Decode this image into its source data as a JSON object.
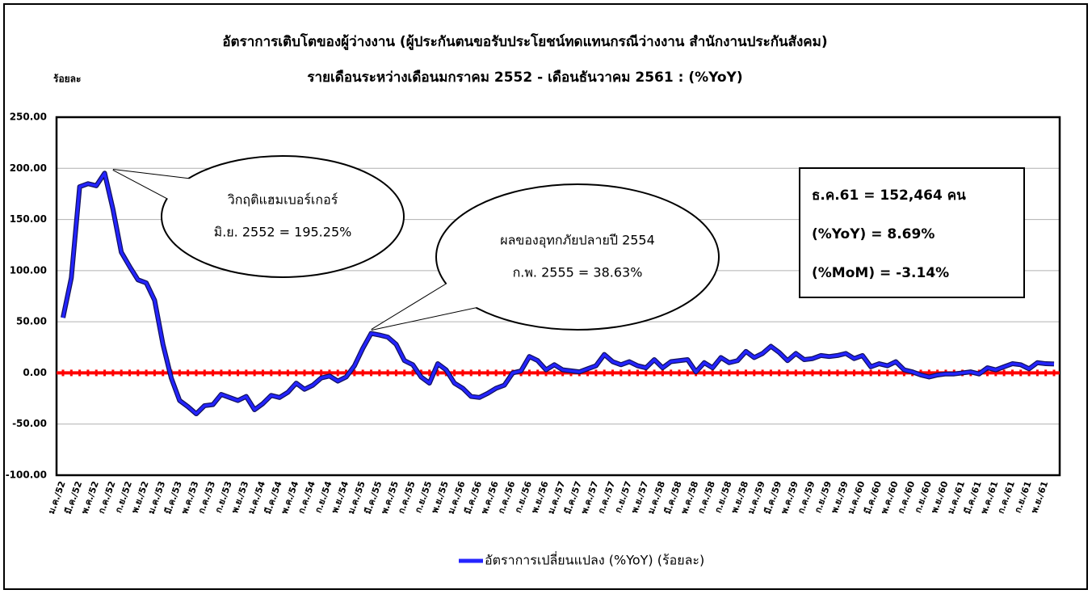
{
  "chart_data": {
    "type": "line",
    "title": "อัตราการเติบโตของผู้ว่างงาน (ผู้ประกันตนขอรับประโยชน์ทดแทนกรณีว่างงาน สำนักงานประกันสังคม)",
    "subtitle": "รายเดือนระหว่างเดือนมกราคม 2552 - เดือนธันวาคม 2561 : (%YoY)",
    "y_label": "ร้อยละ",
    "categories": [
      "ม.ค./52",
      null,
      "มี.ค./52",
      null,
      "พ.ค./52",
      null,
      "ก.ค./52",
      null,
      "ก.ย./52",
      null,
      "พ.ย./52",
      null,
      "ม.ค./53",
      null,
      "มี.ค./53",
      null,
      "พ.ค./53",
      null,
      "ก.ค./53",
      null,
      "ก.ย./53",
      null,
      "พ.ย./53",
      null,
      "ม.ค./54",
      null,
      "มี.ค./54",
      null,
      "พ.ค./54",
      null,
      "ก.ค./54",
      null,
      "ก.ย./54",
      null,
      "พ.ย./54",
      null,
      "ม.ค./55",
      null,
      "มี.ค./55",
      null,
      "พ.ค./55",
      null,
      "ก.ค./55",
      null,
      "ก.ย./55",
      null,
      "พ.ย./55",
      null,
      "ม.ค./56",
      null,
      "มี.ค./56",
      null,
      "พ.ค./56",
      null,
      "ก.ค./56",
      null,
      "ก.ย./56",
      null,
      "พ.ย./56",
      null,
      "ม.ค./57",
      null,
      "มี.ค./57",
      null,
      "พ.ค./57",
      null,
      "ก.ค./57",
      null,
      "ก.ย./57",
      null,
      "พ.ย./57",
      null,
      "ม.ค./58",
      null,
      "มี.ค./58",
      null,
      "พ.ค./58",
      null,
      "ก.ค./58",
      null,
      "ก.ย./58",
      null,
      "พ.ย./58",
      null,
      "ม.ค./59",
      null,
      "มี.ค./59",
      null,
      "พ.ค./59",
      null,
      "ก.ค./59",
      null,
      "ก.ย./59",
      null,
      "พ.ย./59",
      null,
      "ม.ค./60",
      null,
      "มี.ค./60",
      null,
      "พ.ค./60",
      null,
      "ก.ค./60",
      null,
      "ก.ย./60",
      null,
      "พ.ย./60",
      null,
      "ม.ค./61",
      null,
      "มี.ค./61",
      null,
      "พ.ค./61",
      null,
      "ก.ค./61",
      null,
      "ก.ย./61",
      null,
      "พ.ย./61",
      null
    ],
    "series": [
      {
        "name": "อัตราการเปลี่ยนแปลง (%YoY) (ร้อยละ)",
        "color": "#2424ff",
        "values": [
          54,
          93,
          182,
          185,
          183,
          195.25,
          160,
          118,
          104,
          91,
          88,
          71,
          28,
          -5,
          -27,
          -33,
          -40,
          -32,
          -31,
          -21,
          -24,
          -27,
          -23,
          -36,
          -30,
          -22,
          -24,
          -19,
          -10,
          -16,
          -12,
          -5,
          -3,
          -8,
          -4,
          7,
          24,
          38.63,
          37,
          35,
          28,
          12,
          8,
          -4,
          -10,
          9,
          3,
          -10,
          -15,
          -23,
          -24,
          -20,
          -15,
          -12,
          0,
          2,
          16,
          12,
          3,
          8,
          3,
          2,
          1,
          4,
          7,
          18,
          11,
          8,
          11,
          7,
          5,
          13,
          5,
          11,
          12,
          13,
          1,
          10,
          5,
          15,
          10,
          12,
          21,
          15,
          19,
          26,
          20,
          12,
          19,
          13,
          14,
          17,
          16,
          17,
          19,
          14,
          17,
          6,
          9,
          7,
          11,
          3,
          1,
          -2,
          -4,
          -2,
          -1,
          -1,
          0,
          1,
          -1,
          5,
          3,
          6,
          9,
          8,
          4,
          10,
          9,
          8.69
        ]
      }
    ],
    "ylim": [
      -100,
      250
    ],
    "yticks": [
      {
        "value": -100,
        "label": "-100.00"
      },
      {
        "value": -50,
        "label": "-50.00"
      },
      {
        "value": 0,
        "label": "0.00"
      },
      {
        "value": 50,
        "label": "50.00"
      },
      {
        "value": 100,
        "label": "100.00"
      },
      {
        "value": 150,
        "label": "150.00"
      },
      {
        "value": 200,
        "label": "200.00"
      },
      {
        "value": 250,
        "label": "250.00"
      }
    ],
    "grid": true,
    "reference_line": {
      "value": 0,
      "color": "#ff0000"
    },
    "annotations": [
      {
        "lines": [
          "วิกฤติแฮมเบอร์เกอร์",
          "มิ.ย. 2552 = 195.25%"
        ]
      },
      {
        "lines": [
          "ผลของอุทกภัยปลายปี 2554",
          "ก.พ. 2555 = 38.63%"
        ]
      }
    ],
    "info_box": {
      "lines": [
        "ธ.ค.61 = 152,464 คน",
        "(%YoY)   = 8.69%",
        "(%MoM)  = -3.14%"
      ]
    }
  }
}
